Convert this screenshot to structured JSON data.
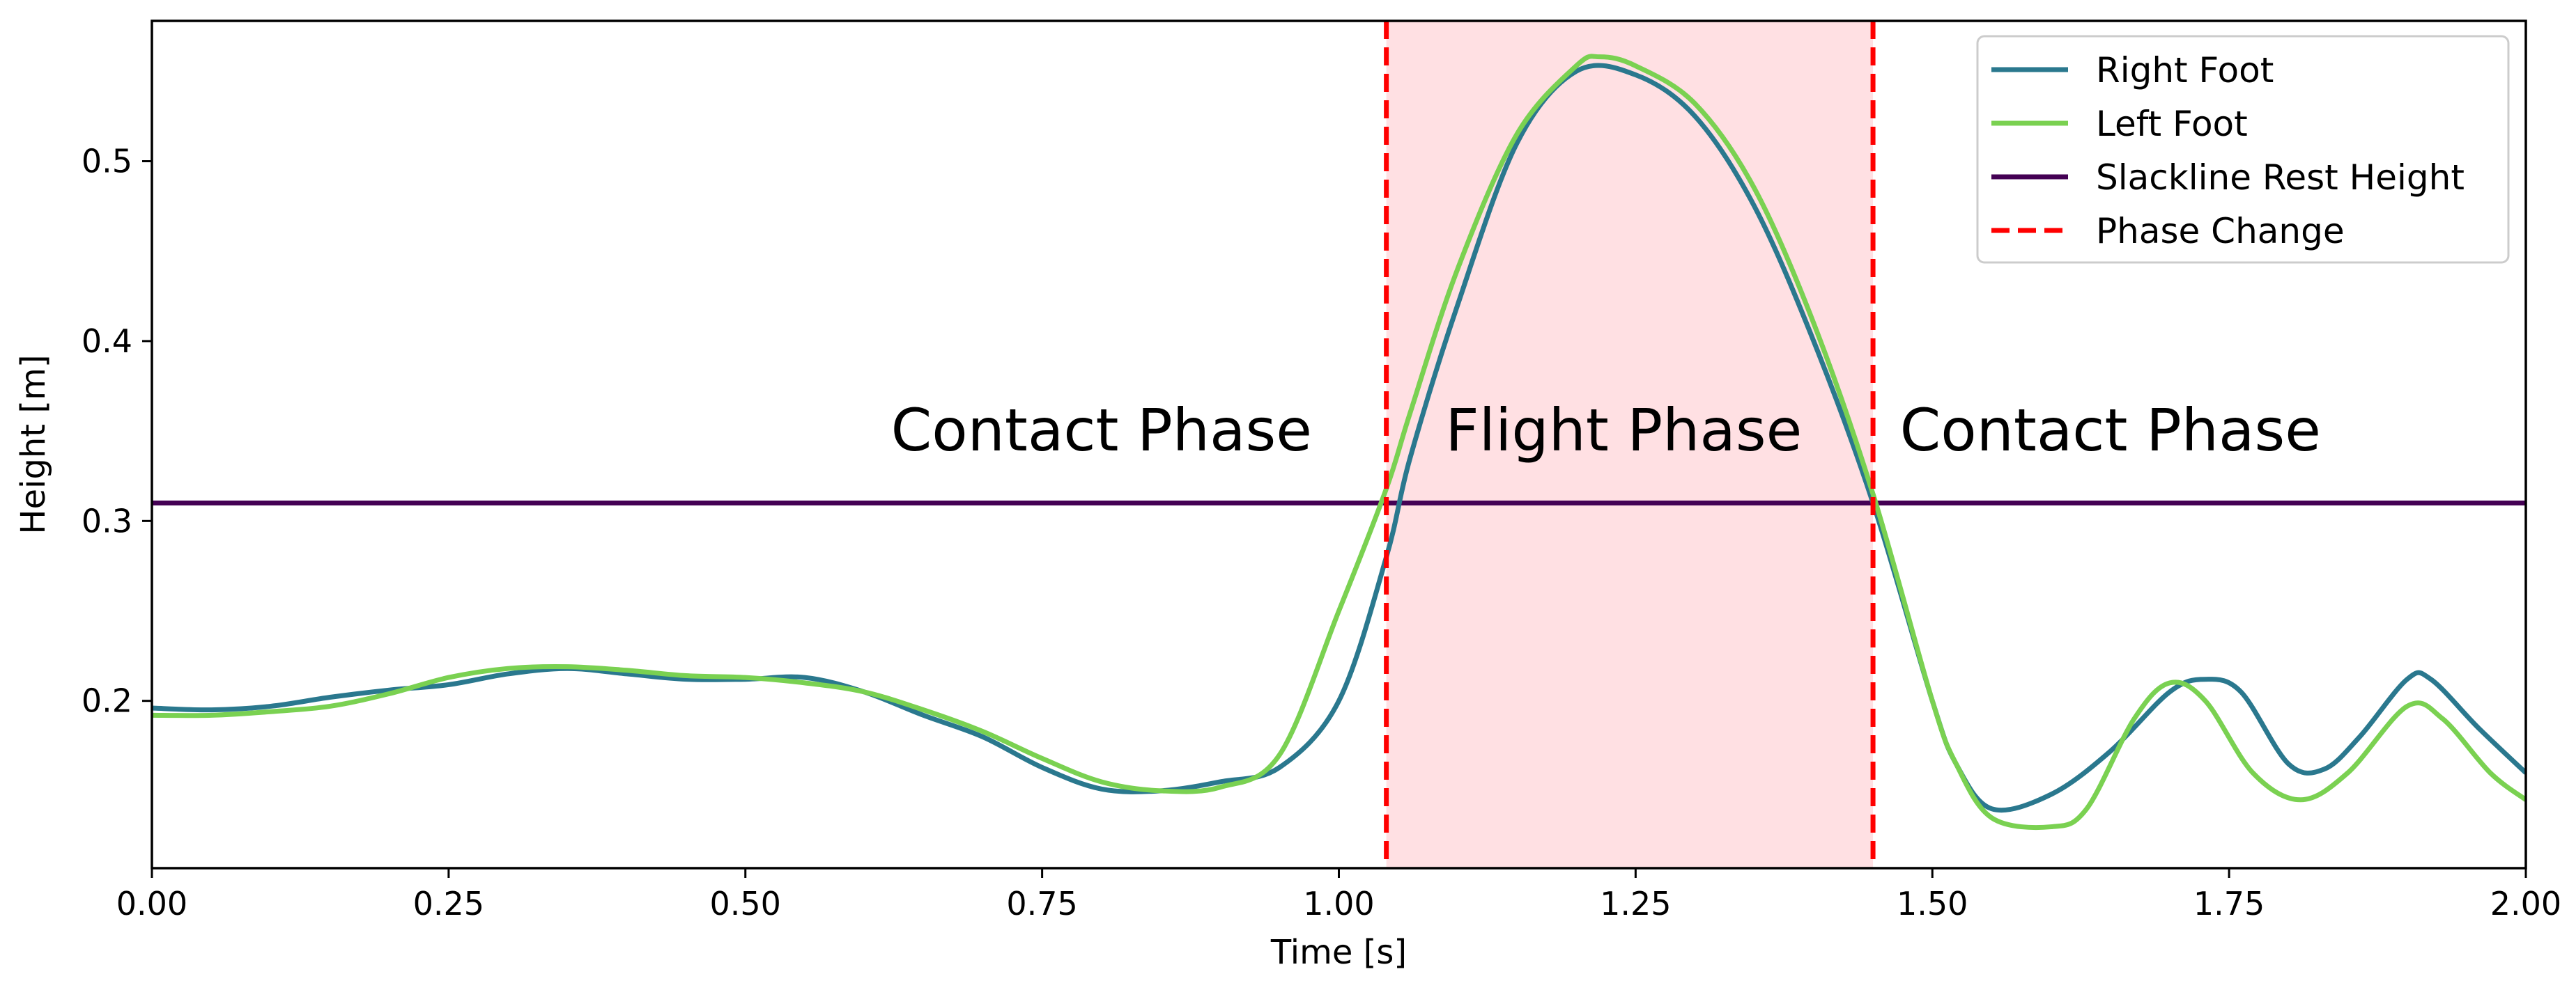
{
  "chart_data": {
    "type": "line",
    "title": "",
    "xlabel": "Time [s]",
    "ylabel": "Height [m]",
    "xlim": [
      0.0,
      2.0
    ],
    "ylim": [
      0.107,
      0.578
    ],
    "grid": false,
    "legend_position": "top-right",
    "x_ticks": [
      {
        "value": 0.0,
        "label": "0.00"
      },
      {
        "value": 0.25,
        "label": "0.25"
      },
      {
        "value": 0.5,
        "label": "0.50"
      },
      {
        "value": 0.75,
        "label": "0.75"
      },
      {
        "value": 1.0,
        "label": "1.00"
      },
      {
        "value": 1.25,
        "label": "1.25"
      },
      {
        "value": 1.5,
        "label": "1.50"
      },
      {
        "value": 1.75,
        "label": "1.75"
      },
      {
        "value": 2.0,
        "label": "2.00"
      }
    ],
    "y_ticks": [
      {
        "value": 0.2,
        "label": "0.2"
      },
      {
        "value": 0.3,
        "label": "0.3"
      },
      {
        "value": 0.4,
        "label": "0.4"
      },
      {
        "value": 0.5,
        "label": "0.5"
      }
    ],
    "series": [
      {
        "name": "Right Foot",
        "color": "#2a788e",
        "points": [
          [
            0.0,
            0.196
          ],
          [
            0.05,
            0.195
          ],
          [
            0.1,
            0.197
          ],
          [
            0.15,
            0.202
          ],
          [
            0.2,
            0.206
          ],
          [
            0.25,
            0.209
          ],
          [
            0.3,
            0.215
          ],
          [
            0.35,
            0.218
          ],
          [
            0.4,
            0.215
          ],
          [
            0.45,
            0.212
          ],
          [
            0.5,
            0.212
          ],
          [
            0.55,
            0.213
          ],
          [
            0.6,
            0.205
          ],
          [
            0.65,
            0.192
          ],
          [
            0.7,
            0.18
          ],
          [
            0.75,
            0.163
          ],
          [
            0.8,
            0.151
          ],
          [
            0.85,
            0.15
          ],
          [
            0.9,
            0.155
          ],
          [
            0.95,
            0.163
          ],
          [
            1.0,
            0.2
          ],
          [
            1.04,
            0.28
          ],
          [
            1.06,
            0.335
          ],
          [
            1.1,
            0.42
          ],
          [
            1.15,
            0.51
          ],
          [
            1.2,
            0.55
          ],
          [
            1.25,
            0.548
          ],
          [
            1.3,
            0.525
          ],
          [
            1.35,
            0.475
          ],
          [
            1.4,
            0.4
          ],
          [
            1.45,
            0.31
          ],
          [
            1.5,
            0.2
          ],
          [
            1.52,
            0.165
          ],
          [
            1.55,
            0.14
          ],
          [
            1.6,
            0.148
          ],
          [
            1.65,
            0.172
          ],
          [
            1.7,
            0.205
          ],
          [
            1.73,
            0.212
          ],
          [
            1.76,
            0.205
          ],
          [
            1.8,
            0.165
          ],
          [
            1.83,
            0.162
          ],
          [
            1.86,
            0.18
          ],
          [
            1.9,
            0.212
          ],
          [
            1.92,
            0.212
          ],
          [
            1.96,
            0.185
          ],
          [
            2.0,
            0.16
          ]
        ]
      },
      {
        "name": "Left Foot",
        "color": "#7ad151",
        "points": [
          [
            0.0,
            0.192
          ],
          [
            0.05,
            0.192
          ],
          [
            0.1,
            0.194
          ],
          [
            0.15,
            0.197
          ],
          [
            0.2,
            0.204
          ],
          [
            0.25,
            0.213
          ],
          [
            0.3,
            0.218
          ],
          [
            0.35,
            0.219
          ],
          [
            0.4,
            0.217
          ],
          [
            0.45,
            0.214
          ],
          [
            0.5,
            0.213
          ],
          [
            0.55,
            0.21
          ],
          [
            0.6,
            0.205
          ],
          [
            0.65,
            0.195
          ],
          [
            0.7,
            0.183
          ],
          [
            0.75,
            0.168
          ],
          [
            0.8,
            0.155
          ],
          [
            0.85,
            0.15
          ],
          [
            0.9,
            0.152
          ],
          [
            0.95,
            0.17
          ],
          [
            1.0,
            0.25
          ],
          [
            1.04,
            0.318
          ],
          [
            1.06,
            0.36
          ],
          [
            1.1,
            0.44
          ],
          [
            1.15,
            0.515
          ],
          [
            1.2,
            0.553
          ],
          [
            1.22,
            0.558
          ],
          [
            1.25,
            0.553
          ],
          [
            1.3,
            0.532
          ],
          [
            1.35,
            0.485
          ],
          [
            1.4,
            0.41
          ],
          [
            1.45,
            0.315
          ],
          [
            1.5,
            0.2
          ],
          [
            1.52,
            0.165
          ],
          [
            1.55,
            0.135
          ],
          [
            1.6,
            0.13
          ],
          [
            1.63,
            0.14
          ],
          [
            1.67,
            0.19
          ],
          [
            1.7,
            0.21
          ],
          [
            1.73,
            0.2
          ],
          [
            1.77,
            0.16
          ],
          [
            1.81,
            0.145
          ],
          [
            1.85,
            0.16
          ],
          [
            1.9,
            0.197
          ],
          [
            1.93,
            0.19
          ],
          [
            1.97,
            0.16
          ],
          [
            2.0,
            0.145
          ]
        ]
      },
      {
        "name": "Slackline Rest Height",
        "color": "#440154",
        "points": [
          [
            0.0,
            0.31
          ],
          [
            2.0,
            0.31
          ]
        ]
      }
    ],
    "phase_change": {
      "name": "Phase Change",
      "color": "#ff0000",
      "times": [
        1.04,
        1.45
      ]
    },
    "flight_region": {
      "start": 1.04,
      "end": 1.45,
      "color": "#ffe0e3"
    },
    "annotations": [
      {
        "text": "Contact Phase",
        "x": 0.8,
        "y": 0.35,
        "anchor": "middle"
      },
      {
        "text": "Flight Phase",
        "x": 1.24,
        "y": 0.35,
        "anchor": "middle"
      },
      {
        "text": "Contact Phase",
        "x": 1.65,
        "y": 0.35,
        "anchor": "middle"
      }
    ]
  }
}
